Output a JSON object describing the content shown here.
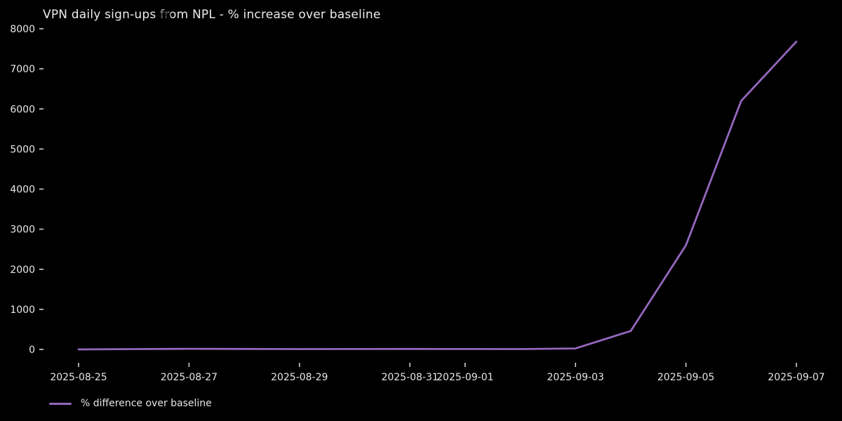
{
  "chart_data": {
    "type": "line",
    "title": "VPN daily sign-ups from NPL - % increase over baseline",
    "xlabel": "",
    "ylabel": "",
    "x": [
      "2025-08-25",
      "2025-08-26",
      "2025-08-27",
      "2025-08-28",
      "2025-08-29",
      "2025-08-30",
      "2025-08-31",
      "2025-09-01",
      "2025-09-02",
      "2025-09-03",
      "2025-09-04",
      "2025-09-05",
      "2025-09-06",
      "2025-09-07"
    ],
    "series": [
      {
        "name": "% difference over baseline",
        "color": "#9467bd",
        "values": [
          0,
          8,
          15,
          12,
          8,
          10,
          12,
          10,
          8,
          25,
          460,
          2600,
          6200,
          7680
        ]
      }
    ],
    "yticks": [
      0,
      1000,
      2000,
      3000,
      4000,
      5000,
      6000,
      7000,
      8000
    ],
    "xtick_labels": [
      "2025-08-25",
      "2025-08-27",
      "2025-08-29",
      "2025-08-31",
      "2025-09-01",
      "2025-09-03",
      "2025-09-05",
      "2025-09-07"
    ],
    "xtick_indices": [
      0,
      2,
      4,
      6,
      7,
      9,
      11,
      13
    ],
    "ylim": [
      0,
      8000
    ],
    "grid": false,
    "legend_position": "lower-left",
    "theme": "dark"
  },
  "legend": {
    "label": "% difference over baseline"
  },
  "colors": {
    "background": "#000000",
    "text": "#e6e6e6",
    "title_text": "#ececec",
    "tick_mark": "#cfcfcf",
    "line": "#9467bd"
  }
}
